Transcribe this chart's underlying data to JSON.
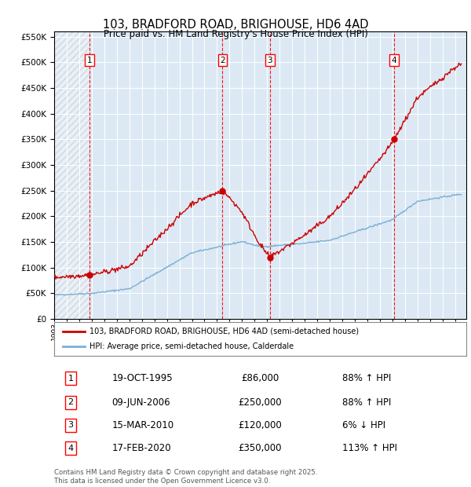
{
  "title": "103, BRADFORD ROAD, BRIGHOUSE, HD6 4AD",
  "subtitle": "Price paid vs. HM Land Registry's House Price Index (HPI)",
  "sale_prices": [
    86000,
    250000,
    120000,
    350000
  ],
  "sale_labels": [
    "1",
    "2",
    "3",
    "4"
  ],
  "sale_date_labels": [
    "19-OCT-1995",
    "09-JUN-2006",
    "15-MAR-2010",
    "17-FEB-2020"
  ],
  "sale_price_labels": [
    "£86,000",
    "£250,000",
    "£120,000",
    "£350,000"
  ],
  "sale_pct_labels": [
    "88% ↑ HPI",
    "88% ↑ HPI",
    "6% ↓ HPI",
    "113% ↑ HPI"
  ],
  "legend_house": "103, BRADFORD ROAD, BRIGHOUSE, HD6 4AD (semi-detached house)",
  "legend_hpi": "HPI: Average price, semi-detached house, Calderdale",
  "footer": "Contains HM Land Registry data © Crown copyright and database right 2025.\nThis data is licensed under the Open Government Licence v3.0.",
  "house_color": "#cc0000",
  "hpi_color": "#7bafd4",
  "plot_bg_color": "#dce9f5",
  "ylim": [
    0,
    560000
  ],
  "yticks": [
    0,
    50000,
    100000,
    150000,
    200000,
    250000,
    300000,
    350000,
    400000,
    450000,
    500000,
    550000
  ],
  "sale_year_nums": [
    1995.8,
    2006.44,
    2010.21,
    2020.13
  ]
}
